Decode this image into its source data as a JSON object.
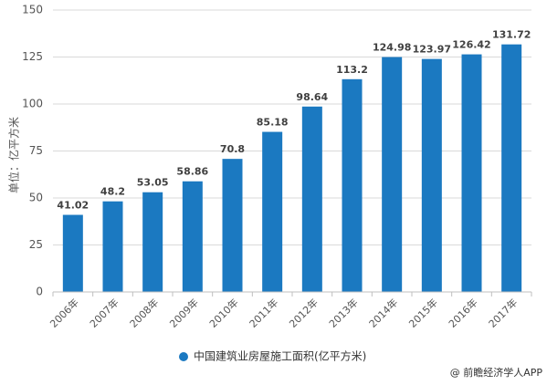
{
  "chart_data": {
    "type": "bar",
    "categories": [
      "2006年",
      "2007年",
      "2008年",
      "2009年",
      "2010年",
      "2011年",
      "2012年",
      "2013年",
      "2014年",
      "2015年",
      "2016年",
      "2017年"
    ],
    "series": [
      {
        "name": "中国建筑业房屋施工面积(亿平方米)",
        "values": [
          41.02,
          48.2,
          53.05,
          58.86,
          70.8,
          85.18,
          98.64,
          113.2,
          124.98,
          123.97,
          126.42,
          131.72
        ]
      }
    ],
    "data_labels": [
      "41.02",
      "48.2",
      "53.05",
      "58.86",
      "70.8",
      "85.18",
      "98.64",
      "113.2",
      "124.98",
      "123.97",
      "126.42",
      "131.72"
    ],
    "ylabel": "单位：亿平方米",
    "ylim": [
      0,
      150
    ],
    "yticks": [
      0,
      25,
      50,
      75,
      100,
      125,
      150
    ],
    "grid": true,
    "legend": {
      "position": "bottom",
      "label": "中国建筑业房屋施工面积(亿平方米)"
    },
    "colors": {
      "bar": "#1b79c1"
    }
  },
  "source": "@ 前瞻经济学人APP"
}
